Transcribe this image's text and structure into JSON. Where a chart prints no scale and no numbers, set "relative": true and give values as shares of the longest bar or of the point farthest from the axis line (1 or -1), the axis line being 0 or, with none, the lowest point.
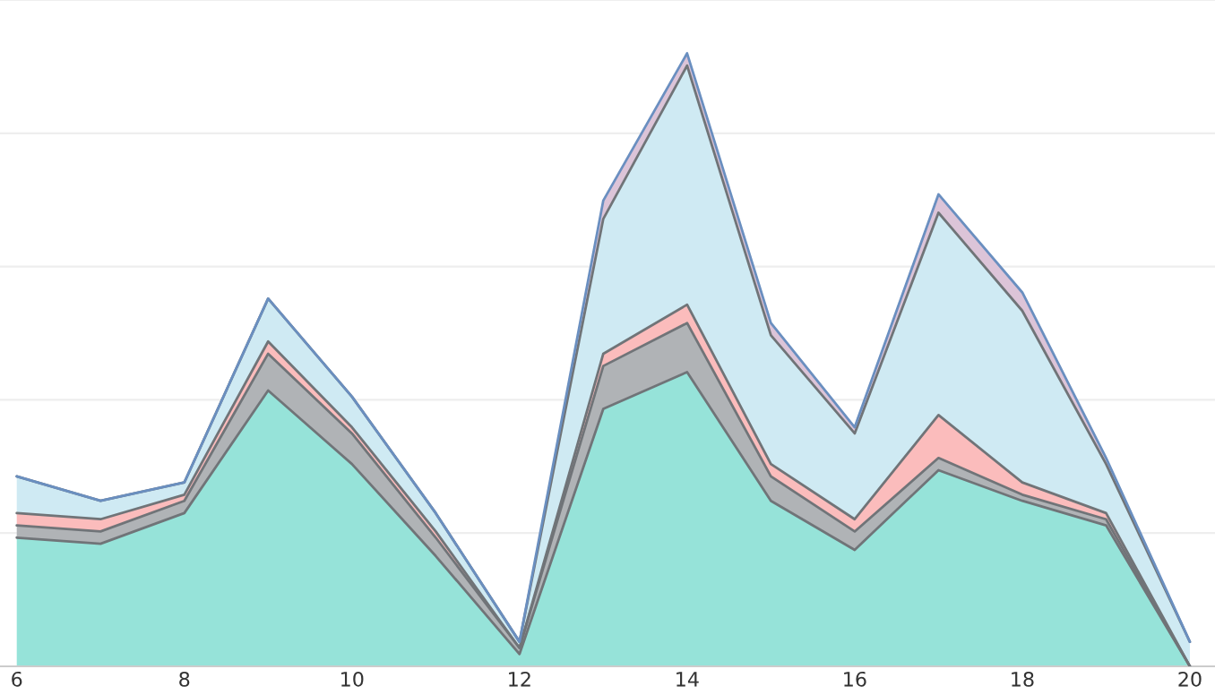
{
  "chart_data": {
    "type": "area",
    "stacked": true,
    "relative": true,
    "x": [
      6,
      7,
      8,
      9,
      10,
      11,
      12,
      13,
      14,
      15,
      16,
      17,
      18,
      19,
      20
    ],
    "xlim": [
      5.8,
      20.3
    ],
    "xticks": [
      6,
      8,
      10,
      12,
      14,
      16,
      18,
      20
    ],
    "grid": "y",
    "series": [
      {
        "color": "#96e3d9",
        "values": [
          0.21,
          0.2,
          0.25,
          0.45,
          0.33,
          0.18,
          0.02,
          0.42,
          0.48,
          0.27,
          0.19,
          0.32,
          0.27,
          0.23,
          0.0
        ]
      },
      {
        "color": "#b0b3b6",
        "values": [
          0.02,
          0.02,
          0.02,
          0.06,
          0.05,
          0.03,
          0.01,
          0.07,
          0.08,
          0.04,
          0.03,
          0.02,
          0.01,
          0.01,
          0.0
        ]
      },
      {
        "color": "#fbbcbc",
        "values": [
          0.02,
          0.02,
          0.01,
          0.02,
          0.01,
          0.01,
          0.0,
          0.02,
          0.03,
          0.02,
          0.02,
          0.07,
          0.02,
          0.01,
          0.0
        ]
      },
      {
        "color": "#cfeaf3",
        "values": [
          0.06,
          0.03,
          0.02,
          0.07,
          0.05,
          0.03,
          0.01,
          0.22,
          0.39,
          0.21,
          0.14,
          0.33,
          0.28,
          0.08,
          0.04
        ]
      },
      {
        "color": "#dcc4d8",
        "values": [
          0.0,
          0.0,
          0.0,
          0.0,
          0.0,
          0.0,
          0.0,
          0.03,
          0.02,
          0.02,
          0.01,
          0.03,
          0.03,
          0.01,
          0.0
        ]
      }
    ]
  }
}
